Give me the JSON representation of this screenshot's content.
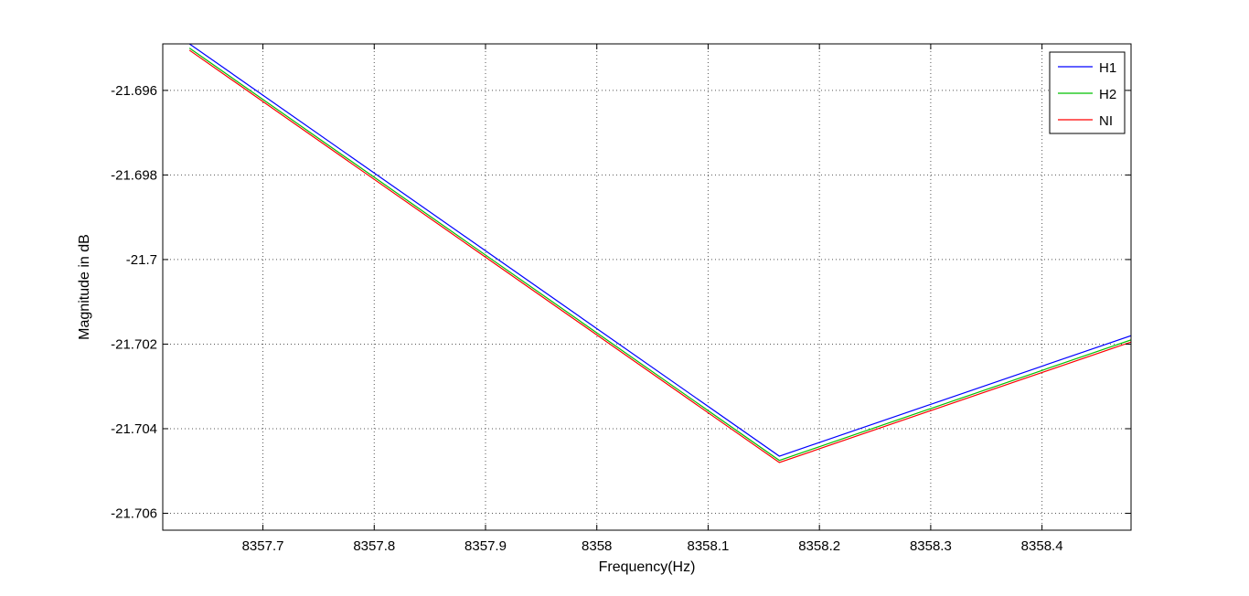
{
  "chart_data": {
    "type": "line",
    "xlabel": "Frequency(Hz)",
    "ylabel": "Magnitude in dB",
    "xlim": [
      8357.61,
      8358.48
    ],
    "ylim": [
      -21.7064,
      -21.6949
    ],
    "x_ticks": [
      8357.7,
      8357.8,
      8357.9,
      8358.0,
      8358.1,
      8358.2,
      8358.3,
      8358.4
    ],
    "x_tick_labels": [
      "8357.7",
      "8357.8",
      "8357.9",
      "8358",
      "8358.1",
      "8358.2",
      "8358.3",
      "8358.4"
    ],
    "y_ticks": [
      -21.696,
      -21.698,
      -21.7,
      -21.702,
      -21.704,
      -21.706
    ],
    "y_tick_labels": [
      "-21.696",
      "-21.698",
      "-21.7",
      "-21.702",
      "-21.704",
      "-21.706"
    ],
    "grid": true,
    "legend_position": "top-right",
    "series": [
      {
        "name": "H1",
        "color": "#0000ff",
        "x": [
          8357.634,
          8358.164,
          8358.48
        ],
        "y": [
          -21.6949,
          -21.70465,
          -21.7018
        ]
      },
      {
        "name": "H2",
        "color": "#00c000",
        "x": [
          8357.634,
          8358.164,
          8358.48
        ],
        "y": [
          -21.695,
          -21.70475,
          -21.7019
        ]
      },
      {
        "name": "NI",
        "color": "#ff0000",
        "x": [
          8357.634,
          8358.164,
          8358.48
        ],
        "y": [
          -21.69505,
          -21.7048,
          -21.70195
        ]
      }
    ]
  }
}
